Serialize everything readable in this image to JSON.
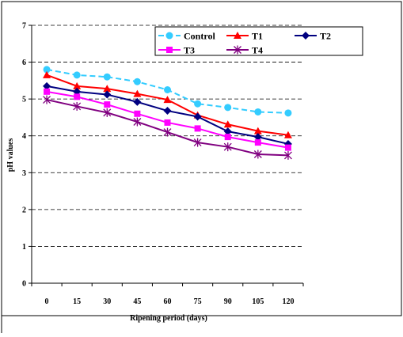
{
  "chart_data": {
    "type": "line",
    "title": "",
    "xlabel": "Ripening period (days)",
    "ylabel": "pH values",
    "categories": [
      "0",
      "15",
      "30",
      "45",
      "60",
      "75",
      "90",
      "105",
      "120"
    ],
    "ylim": [
      0,
      7
    ],
    "yticks": [
      "0",
      "1",
      "2",
      "3",
      "4",
      "5",
      "6",
      "7"
    ],
    "grid": "horizontal dashed",
    "legend_position": "top-right",
    "series": [
      {
        "name": "Control",
        "color": "#33CCFF",
        "marker": "circle",
        "dashed": true,
        "values": [
          5.8,
          5.65,
          5.6,
          5.47,
          5.25,
          4.87,
          4.77,
          4.65,
          4.62
        ]
      },
      {
        "name": "T1",
        "color": "#FF0000",
        "marker": "triangle",
        "dashed": false,
        "values": [
          5.65,
          5.35,
          5.28,
          5.14,
          4.98,
          4.56,
          4.31,
          4.13,
          4.02
        ]
      },
      {
        "name": "T2",
        "color": "#000080",
        "marker": "diamond",
        "dashed": false,
        "values": [
          5.35,
          5.2,
          5.12,
          4.92,
          4.68,
          4.52,
          4.12,
          3.97,
          3.78
        ]
      },
      {
        "name": "T3",
        "color": "#FF00FF",
        "marker": "square",
        "dashed": false,
        "values": [
          5.2,
          5.06,
          4.85,
          4.6,
          4.36,
          4.2,
          3.97,
          3.82,
          3.68
        ]
      },
      {
        "name": "T4",
        "color": "#800080",
        "marker": "asterisk",
        "dashed": false,
        "values": [
          4.98,
          4.8,
          4.63,
          4.38,
          4.1,
          3.82,
          3.7,
          3.5,
          3.47
        ]
      }
    ]
  }
}
